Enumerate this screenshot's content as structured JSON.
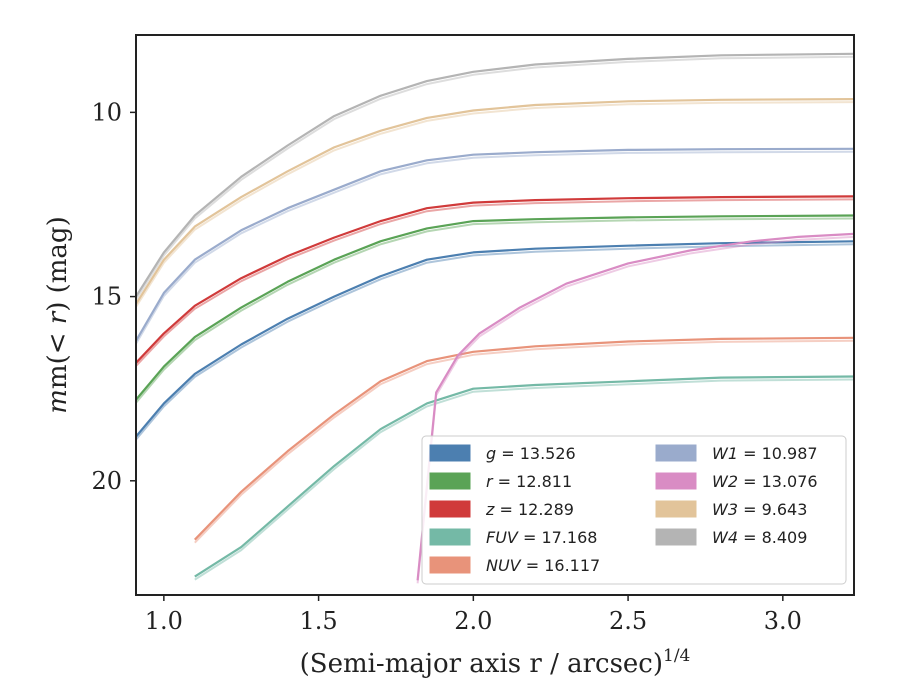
{
  "chart_data": {
    "type": "line",
    "xlabel": "(Semi-major axis r / arcsec)",
    "xlabel_exponent": "1/4",
    "ylabel_parts": [
      "m(",
      "< r",
      ") (mag)"
    ],
    "xlim": [
      0.91,
      3.23
    ],
    "ylim": [
      23.1,
      7.9
    ],
    "y_inverted": true,
    "x_ticks": [
      1.0,
      1.5,
      2.0,
      2.5,
      3.0
    ],
    "x_tick_labels": [
      "1.0",
      "1.5",
      "2.0",
      "2.5",
      "3.0"
    ],
    "y_ticks": [
      10,
      15,
      20
    ],
    "y_tick_labels": [
      "10",
      "15",
      "20"
    ],
    "legend": {
      "placement": "lower-right",
      "columns": 2
    },
    "series": [
      {
        "name": "g",
        "label_value": "= 13.526",
        "color": "#4c7fb0",
        "x": [
          0.91,
          1.0,
          1.1,
          1.25,
          1.4,
          1.55,
          1.7,
          1.85,
          2.0,
          2.2,
          2.5,
          2.8,
          3.23
        ],
        "y": [
          18.8,
          17.9,
          17.1,
          16.3,
          15.6,
          15.0,
          14.45,
          14.0,
          13.8,
          13.7,
          13.62,
          13.55,
          13.5
        ]
      },
      {
        "name": "r",
        "label_value": "= 12.811",
        "color": "#5aa356",
        "x": [
          0.91,
          1.0,
          1.1,
          1.25,
          1.4,
          1.55,
          1.7,
          1.85,
          2.0,
          2.2,
          2.5,
          2.8,
          3.23
        ],
        "y": [
          17.8,
          16.9,
          16.1,
          15.3,
          14.6,
          14.0,
          13.5,
          13.15,
          12.95,
          12.9,
          12.85,
          12.82,
          12.8
        ]
      },
      {
        "name": "z",
        "label_value": "= 12.289",
        "color": "#d03a3a",
        "x": [
          0.91,
          1.0,
          1.1,
          1.25,
          1.4,
          1.55,
          1.7,
          1.85,
          2.0,
          2.2,
          2.5,
          2.8,
          3.23
        ],
        "y": [
          16.8,
          16.0,
          15.25,
          14.5,
          13.9,
          13.4,
          12.95,
          12.6,
          12.45,
          12.38,
          12.33,
          12.3,
          12.28
        ]
      },
      {
        "name": "FUV",
        "label_value": "= 17.168",
        "color": "#74b9a6",
        "x": [
          1.1,
          1.25,
          1.4,
          1.55,
          1.7,
          1.85,
          2.0,
          2.2,
          2.5,
          2.8,
          3.23
        ],
        "y": [
          22.6,
          21.8,
          20.7,
          19.6,
          18.6,
          17.9,
          17.5,
          17.4,
          17.3,
          17.2,
          17.17
        ]
      },
      {
        "name": "NUV",
        "label_value": "= 16.117",
        "color": "#e8937a",
        "x": [
          1.1,
          1.25,
          1.4,
          1.55,
          1.7,
          1.85,
          2.0,
          2.2,
          2.5,
          2.8,
          3.23
        ],
        "y": [
          21.6,
          20.3,
          19.2,
          18.2,
          17.3,
          16.75,
          16.5,
          16.35,
          16.22,
          16.15,
          16.12
        ]
      },
      {
        "name": "W1",
        "label_value": "= 10.987",
        "color": "#9aabcc",
        "x": [
          0.91,
          1.0,
          1.1,
          1.25,
          1.4,
          1.55,
          1.7,
          1.85,
          2.0,
          2.2,
          2.5,
          2.8,
          3.23
        ],
        "y": [
          16.2,
          14.9,
          14.0,
          13.2,
          12.6,
          12.1,
          11.6,
          11.3,
          11.15,
          11.08,
          11.02,
          11.0,
          10.99
        ]
      },
      {
        "name": "W2",
        "label_value": "= 13.076",
        "color": "#d98cc4",
        "x": [
          1.82,
          1.88,
          1.95,
          2.02,
          2.15,
          2.3,
          2.5,
          2.7,
          2.9,
          3.05,
          3.23
        ],
        "y": [
          22.7,
          17.6,
          16.6,
          16.0,
          15.3,
          14.65,
          14.1,
          13.75,
          13.5,
          13.38,
          13.3
        ]
      },
      {
        "name": "W3",
        "label_value": "= 9.643",
        "color": "#e2c49a",
        "x": [
          0.91,
          1.0,
          1.1,
          1.25,
          1.4,
          1.55,
          1.7,
          1.85,
          2.0,
          2.2,
          2.5,
          2.8,
          3.23
        ],
        "y": [
          15.2,
          14.0,
          13.1,
          12.3,
          11.6,
          10.95,
          10.5,
          10.15,
          9.95,
          9.8,
          9.7,
          9.66,
          9.64
        ]
      },
      {
        "name": "W4",
        "label_value": "= 8.409",
        "color": "#b4b4b4",
        "x": [
          0.91,
          1.0,
          1.1,
          1.25,
          1.4,
          1.55,
          1.7,
          1.85,
          2.0,
          2.2,
          2.5,
          2.8,
          3.23
        ],
        "y": [
          15.0,
          13.8,
          12.8,
          11.75,
          10.9,
          10.1,
          9.55,
          9.15,
          8.9,
          8.7,
          8.55,
          8.45,
          8.41
        ]
      }
    ]
  }
}
